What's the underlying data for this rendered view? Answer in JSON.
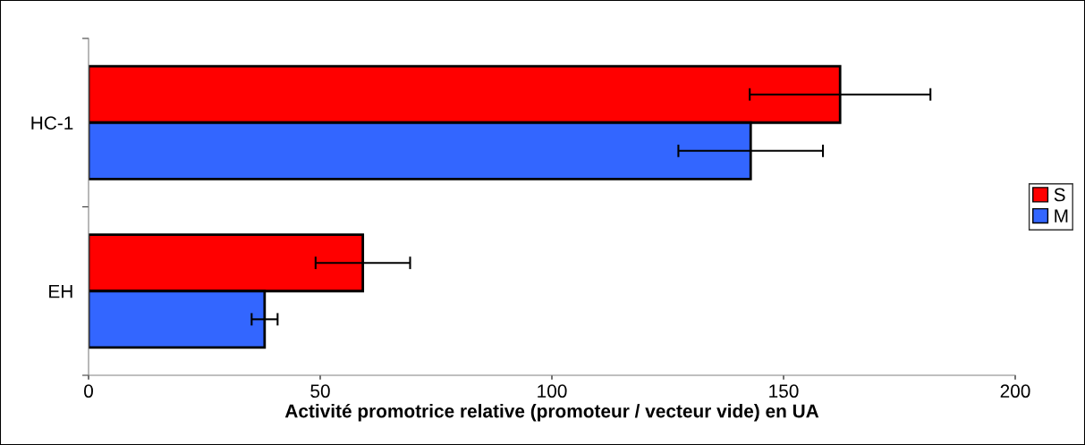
{
  "chart_data": {
    "type": "bar",
    "orientation": "horizontal",
    "xlabel": "Activité promotrice relative (promoteur / vecteur vide) en UA",
    "categories": [
      "HC-1",
      "EH"
    ],
    "series": [
      {
        "name": "S",
        "color": "#ff0000",
        "values": [
          162.2,
          59.2
        ],
        "errors": [
          19.5,
          10.2
        ]
      },
      {
        "name": "M",
        "color": "#3366ff",
        "values": [
          142.9,
          38.0
        ],
        "errors": [
          15.6,
          2.8
        ]
      }
    ],
    "xlim": [
      0,
      200
    ],
    "xticks": [
      0,
      50,
      100,
      150,
      200
    ],
    "grid": false,
    "legend": "right"
  }
}
